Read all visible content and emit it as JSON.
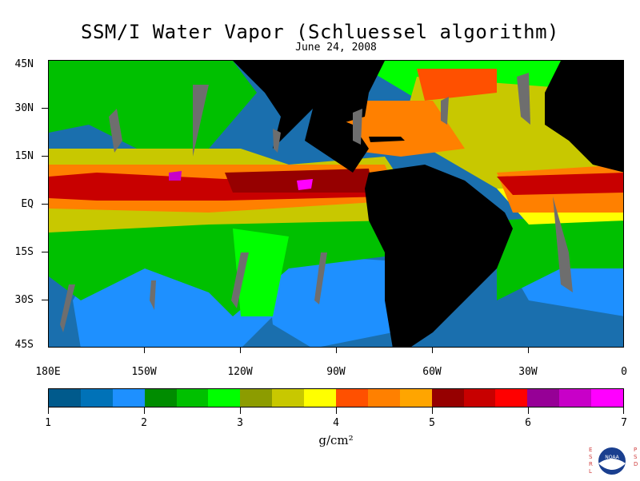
{
  "title": "SSM/I Water Vapor (Schluessel algorithm)",
  "subtitle": "June 24, 2008",
  "latitude_labels": [
    "45N",
    "30N",
    "15N",
    "EQ",
    "15S",
    "30S",
    "45S"
  ],
  "longitude_labels": [
    "180E",
    "150W",
    "120W",
    "90W",
    "60W",
    "30W",
    "0"
  ],
  "colorbar": {
    "labels": [
      "1",
      "2",
      "3",
      "4",
      "5",
      "6",
      "7"
    ],
    "units": "g/cm²",
    "colors": [
      "#005a8c",
      "#0072b8",
      "#1e90ff",
      "#008c00",
      "#00c000",
      "#00ff00",
      "#8c9c00",
      "#c8c800",
      "#ffff00",
      "#ff5000",
      "#ff8000",
      "#ffa500",
      "#960000",
      "#c80000",
      "#ff0000",
      "#960096",
      "#c800c8",
      "#ff00ff"
    ]
  },
  "map_colors": {
    "land": "#000000",
    "no_data": "#6e6e6e",
    "ocean_low": "#1a6fae"
  },
  "logo": {
    "left_letters": "ESRL",
    "right_letters": "PSD",
    "emblem_text": "NOAA"
  }
}
